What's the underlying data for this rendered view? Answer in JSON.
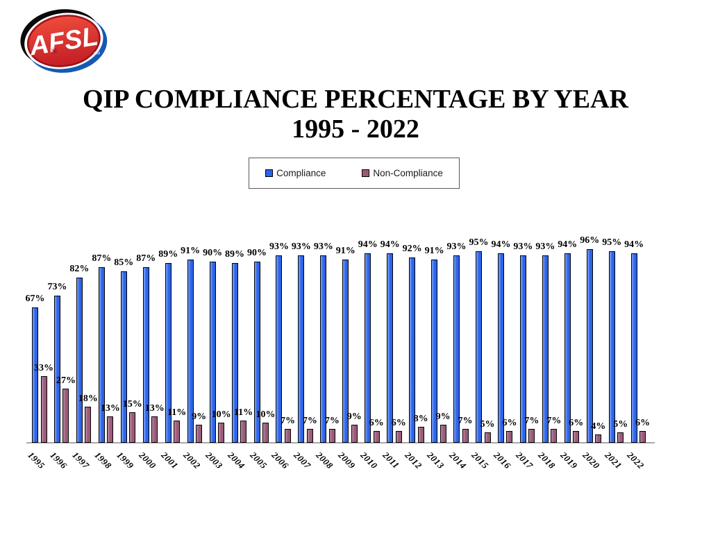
{
  "logo": {
    "text": "AFSL",
    "tm": "TM",
    "colors": {
      "red_light": "#ee4b3c",
      "red_dark": "#c21e25",
      "ring": "#9e1117",
      "swoosh_black": "#0a0a0a",
      "swoosh_blue": "#1559b3",
      "text_color": "#ffffff"
    }
  },
  "title": {
    "line1": "QIP COMPLIANCE PERCENTAGE BY YEAR",
    "line2": "1995 - 2022"
  },
  "legend": {
    "items": [
      {
        "label": "Compliance",
        "color": "#2c63e9"
      },
      {
        "label": "Non-Compliance",
        "color": "#9a5a78"
      }
    ]
  },
  "chart_data": {
    "type": "bar",
    "title": "QIP COMPLIANCE PERCENTAGE BY YEAR 1995 - 2022",
    "xlabel": "",
    "ylabel": "",
    "ylim": [
      0,
      100
    ],
    "grid": false,
    "legend_position": "top",
    "value_label_suffix": "%",
    "axis_color": "#a8a8a8",
    "categories": [
      "1995",
      "1996",
      "1997",
      "1998",
      "1999",
      "2000",
      "2001",
      "2002",
      "2003",
      "2004",
      "2005",
      "2006",
      "2007",
      "2008",
      "2009",
      "2010",
      "2011",
      "2012",
      "2013",
      "2014",
      "2015",
      "2016",
      "2017",
      "2018",
      "2019",
      "2020",
      "2021",
      "2022"
    ],
    "series": [
      {
        "name": "Compliance",
        "color": "#2c63e9",
        "values": [
          67,
          73,
          82,
          87,
          85,
          87,
          89,
          91,
          90,
          89,
          90,
          93,
          93,
          93,
          91,
          94,
          94,
          92,
          91,
          93,
          95,
          94,
          93,
          93,
          94,
          96,
          95,
          94
        ]
      },
      {
        "name": "Non-Compliance",
        "color": "#9a5a78",
        "values": [
          33,
          27,
          18,
          13,
          15,
          13,
          11,
          9,
          10,
          11,
          10,
          7,
          7,
          7,
          9,
          6,
          6,
          8,
          9,
          7,
          5,
          6,
          7,
          7,
          6,
          4,
          5,
          6
        ]
      }
    ]
  }
}
